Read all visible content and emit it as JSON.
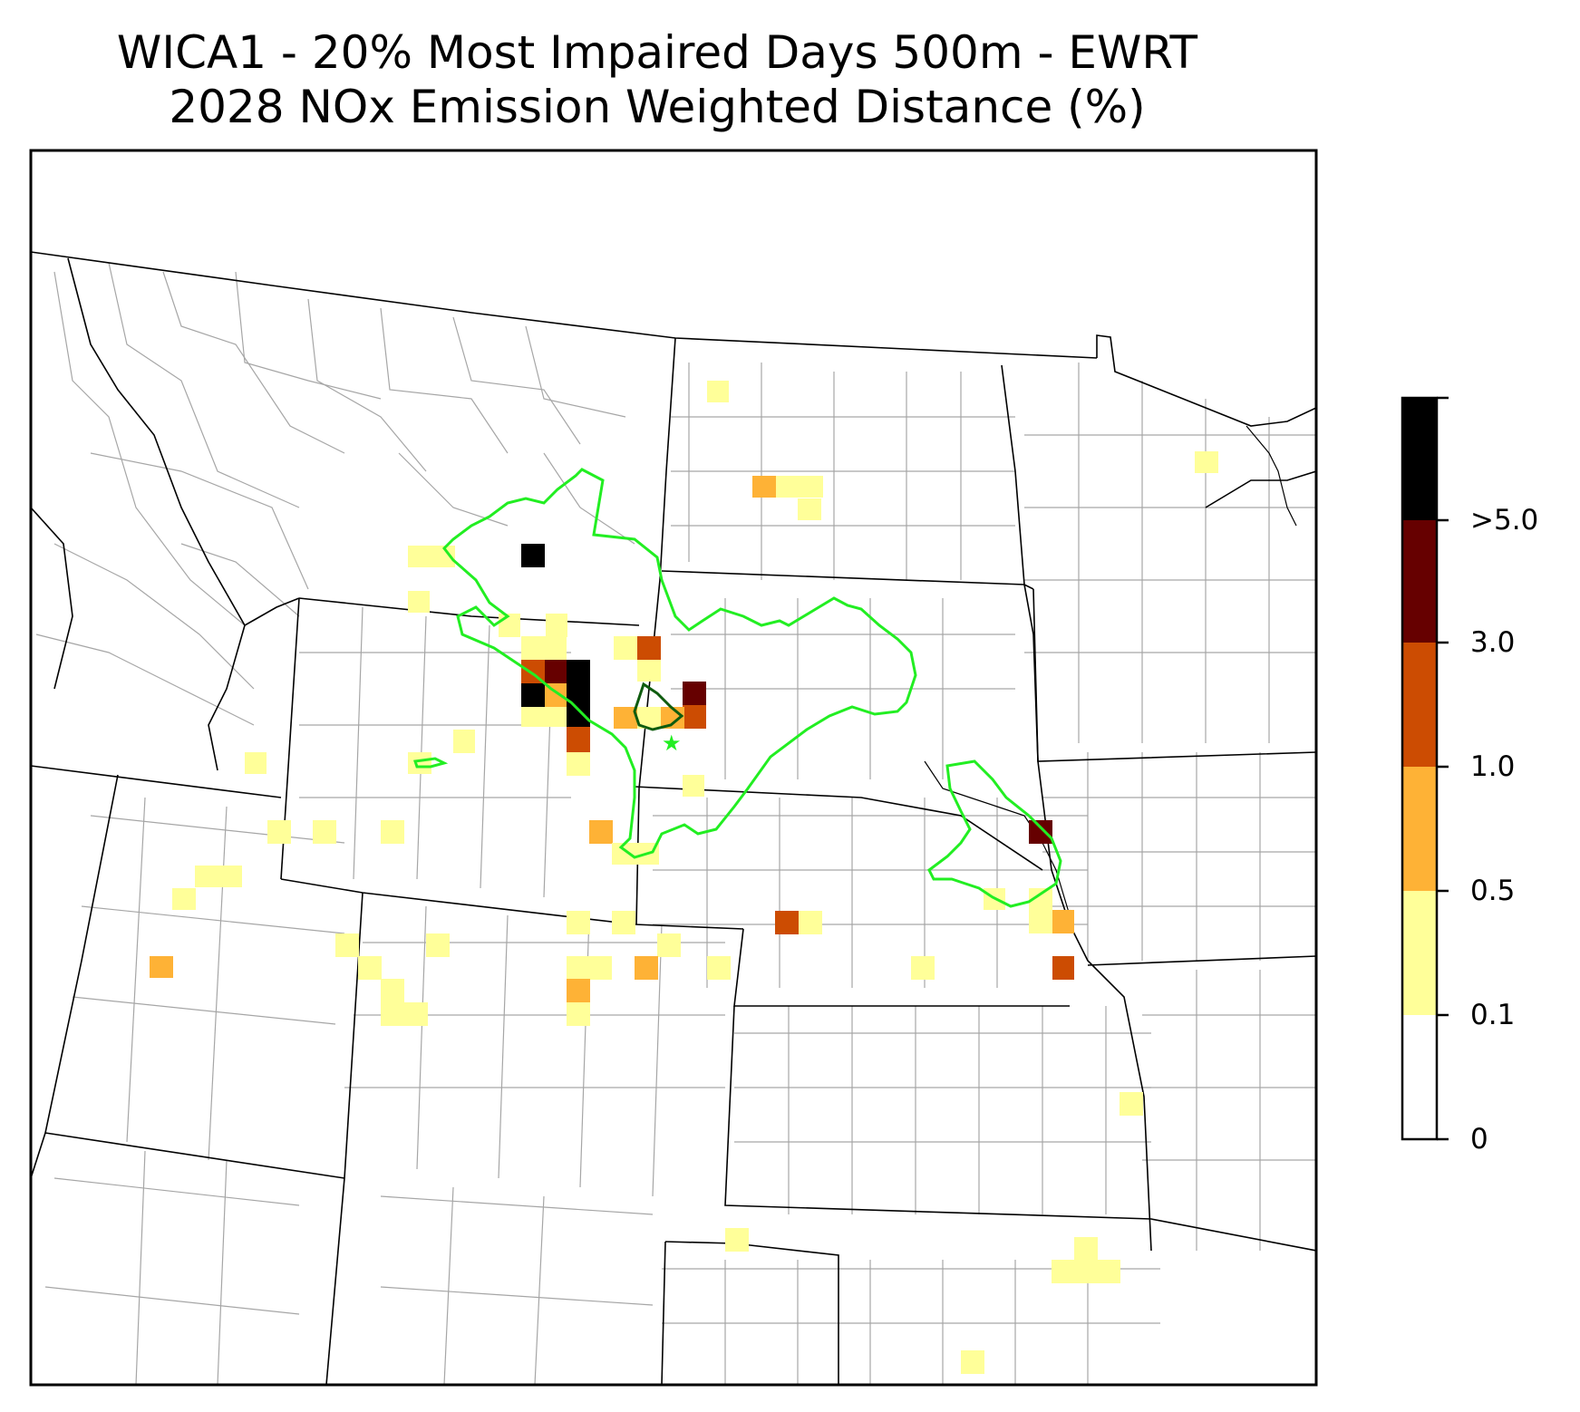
{
  "title": {
    "line1": "WICA1 - 20% Most Impaired Days 500m - EWRT",
    "line2": "2028 NOx Emission Weighted Distance (%)"
  },
  "colorbar": {
    "ticks": [
      {
        "label": "0"
      },
      {
        "label": "0.1"
      },
      {
        "label": "0.5"
      },
      {
        "label": "1.0"
      },
      {
        "label": "3.0"
      },
      {
        "label": ">5.0"
      }
    ],
    "colors": [
      "#ffffff",
      "#ffff99",
      "#feb236",
      "#cc4c02",
      "#660000",
      "#000000"
    ]
  },
  "map_layers": {
    "state_border_color": "#000000",
    "county_border_color": "#a6a6a6",
    "contour_outer_color": "#22ee22",
    "contour_inner_color": "#0f5c0f",
    "site_marker": "star-icon",
    "site_marker_color": "#22ee22"
  }
}
